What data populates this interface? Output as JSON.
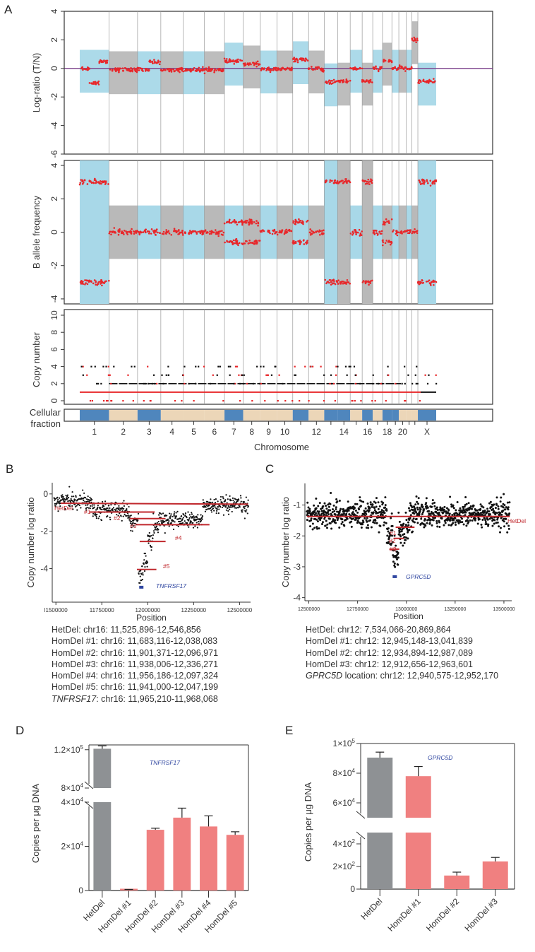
{
  "colors": {
    "cyan": "#a8d8e8",
    "gray": "#b9b9b9",
    "red": "#e8272a",
    "purple": "#7a3e8a",
    "dark_red_line": "#c0282d",
    "gene_blue": "#2f46a0",
    "bar_gray": "#8e9194",
    "bar_pink": "#f08080",
    "tan": "#ecd6b8",
    "steel": "#4f86bd"
  },
  "chart_data": [
    {
      "panel": "A",
      "type": "scatter",
      "title": "",
      "subplots": [
        {
          "name": "log-ratio",
          "ylabel": "Log-ratio (T/N)",
          "ylim": [
            -6,
            4
          ],
          "yticks": [
            "4",
            "2",
            "0",
            "-2",
            "-4",
            "-6"
          ],
          "reference_line": 0,
          "segment_means": [
            {
              "chrom": "1",
              "value": 0.0
            },
            {
              "chrom": "1",
              "value": -1.0
            },
            {
              "chrom": "1",
              "value": 0.5
            },
            {
              "chrom": "2",
              "value": -0.1
            },
            {
              "chrom": "3",
              "value": -0.1
            },
            {
              "chrom": "3",
              "value": 0.45
            },
            {
              "chrom": "4",
              "value": -0.1
            },
            {
              "chrom": "5",
              "value": -0.1
            },
            {
              "chrom": "6",
              "value": -0.1
            },
            {
              "chrom": "7",
              "value": 0.5
            },
            {
              "chrom": "8",
              "value": 0.3
            },
            {
              "chrom": "9",
              "value": -0.05
            },
            {
              "chrom": "10",
              "value": -0.05
            },
            {
              "chrom": "11",
              "value": 0.6
            },
            {
              "chrom": "12",
              "value": -0.05
            },
            {
              "chrom": "13",
              "value": -0.95
            },
            {
              "chrom": "14",
              "value": -0.9
            },
            {
              "chrom": "15",
              "value": 0.0
            },
            {
              "chrom": "16",
              "value": -0.9
            },
            {
              "chrom": "17",
              "value": 0.0
            },
            {
              "chrom": "18",
              "value": 0.5
            },
            {
              "chrom": "19",
              "value": 0.0
            },
            {
              "chrom": "20",
              "value": 0.0
            },
            {
              "chrom": "21",
              "value": 0.0
            },
            {
              "chrom": "22",
              "value": 2.0
            },
            {
              "chrom": "X",
              "value": -0.9
            }
          ]
        },
        {
          "name": "baf",
          "ylabel": "B allele frequency",
          "ylim": [
            -4.3,
            4.3
          ],
          "yticks": [
            "4",
            "2",
            "0",
            "-2",
            "-4"
          ]
        },
        {
          "name": "copy-number",
          "ylabel": "Copy number",
          "ylim": [
            0,
            10
          ],
          "yticks": [
            "10",
            "8",
            "6",
            "4",
            "2",
            "0"
          ]
        },
        {
          "name": "cellular-fraction",
          "ylabel_lines": [
            "Cellular",
            "fraction"
          ]
        }
      ],
      "xlabel": "Chromosome",
      "xtick_labels": [
        "1",
        "2",
        "3",
        "4",
        "5",
        "6",
        "7",
        "8",
        "9",
        "10",
        "",
        "12",
        "",
        "14",
        "",
        "16",
        "",
        "18",
        "",
        "20",
        "",
        "",
        "X"
      ],
      "chromosomes": [
        "1",
        "2",
        "3",
        "4",
        "5",
        "6",
        "7",
        "8",
        "9",
        "10",
        "11",
        "12",
        "13",
        "14",
        "15",
        "16",
        "17",
        "18",
        "19",
        "20",
        "21",
        "22",
        "X"
      ],
      "chrom_sizes": [
        249,
        243,
        198,
        190,
        181,
        171,
        159,
        146,
        141,
        135,
        135,
        133,
        114,
        107,
        102,
        90,
        83,
        80,
        59,
        64,
        47,
        51,
        156
      ]
    },
    {
      "panel": "B",
      "type": "scatter",
      "xlabel": "Position",
      "ylabel": "Copy number log ratio",
      "xlim": [
        11480000,
        12560000
      ],
      "ylim": [
        -5.8,
        0.6
      ],
      "xticks": [
        11500000,
        11750000,
        12000000,
        12250000,
        12500000
      ],
      "xtick_labels": [
        "l1500000",
        "11750000",
        "12000000",
        "12250000",
        "12500000"
      ],
      "yticks": [
        0,
        -2,
        -4
      ],
      "ytick_labels": [
        "0",
        "-2",
        "-4"
      ],
      "segments": [
        {
          "label": "HetDel",
          "start": 11525896,
          "end": 12546856,
          "value": -0.5,
          "start_val": -0.5,
          "end_val": -0.55
        },
        {
          "label": "#1",
          "start": 11683116,
          "end": 12038083,
          "value": -0.97
        },
        {
          "label": "#2",
          "start": 11901371,
          "end": 12096971,
          "value": -1.32
        },
        {
          "label": "#3",
          "start": 11938006,
          "end": 12336271,
          "value": -1.65
        },
        {
          "label": "#4",
          "start": 11956186,
          "end": 12097324,
          "value": -2.55
        },
        {
          "label": "#5",
          "start": 11941000,
          "end": 12047199,
          "value": -4.05
        }
      ],
      "gene": {
        "label": "TNFRSF17",
        "start": 11965210,
        "end": 11968068,
        "value": -5.0
      }
    },
    {
      "panel": "C",
      "type": "scatter",
      "xlabel": "Position",
      "ylabel": "Copy number log ratio",
      "xlim": [
        12480000,
        13540000
      ],
      "ylim": [
        -4.1,
        -0.3
      ],
      "xticks": [
        12500000,
        12750000,
        13000000,
        13250000,
        13500000
      ],
      "xtick_labels": [
        "12500000",
        "12750000",
        "13000000",
        "13250000",
        "13500000"
      ],
      "yticks": [
        -1,
        -2,
        -3,
        -4
      ],
      "ytick_labels": [
        "-1",
        "-2",
        "-3",
        "-4"
      ],
      "segments": [
        {
          "label": "HetDel",
          "start": 12490000,
          "end": 13530000,
          "value": -1.37
        },
        {
          "label": "#1",
          "start": 12945148,
          "end": 13041839,
          "value": -1.72
        },
        {
          "label": "#2",
          "start": 12934894,
          "end": 12987089,
          "value": -2.08
        },
        {
          "label": "#3",
          "start": 12912656,
          "end": 12963601,
          "value": -2.43
        }
      ],
      "gene": {
        "label": "GPRC5D",
        "start": 12940575,
        "end": 12952170,
        "value": -3.32
      }
    },
    {
      "panel": "D",
      "type": "bar",
      "title": "TNFRSF17",
      "ylabel": "Copies per μg DNA",
      "categories": [
        "HetDel",
        "HomDel #1",
        "HomDel #2",
        "HomDel #3",
        "HomDel #4",
        "HomDel #5"
      ],
      "values": [
        121000,
        300,
        27500,
        33000,
        29000,
        25200
      ],
      "errors": [
        3000,
        200,
        700,
        4300,
        4800,
        1400
      ],
      "bar_colors": [
        "gray",
        "pink",
        "pink",
        "pink",
        "pink",
        "pink"
      ],
      "broken_axis": {
        "lower": [
          0,
          40000
        ],
        "upper": [
          80000,
          125000
        ]
      },
      "ytick_values": [
        0,
        20000,
        40000,
        80000,
        120000
      ],
      "ytick_labels": [
        {
          "m": "0",
          "e": ""
        },
        {
          "m": "2×10",
          "e": "4"
        },
        {
          "m": "4×10",
          "e": "4"
        },
        {
          "m": "8×10",
          "e": "4"
        },
        {
          "m": "1.2×10",
          "e": "5"
        }
      ]
    },
    {
      "panel": "E",
      "type": "bar",
      "title": "GPRC5D",
      "ylabel": "Copies per μg DNA",
      "categories": [
        "HetDel",
        "HomDel #1",
        "HomDel #2",
        "HomDel #3"
      ],
      "values": [
        90500,
        78000,
        120,
        245
      ],
      "errors": [
        3700,
        6500,
        30,
        35
      ],
      "bar_colors": [
        "gray",
        "pink",
        "pink",
        "pink"
      ],
      "broken_axis": {
        "lower": [
          0,
          500
        ],
        "upper": [
          50000,
          100000
        ]
      },
      "ytick_values": [
        0,
        200,
        400,
        60000,
        80000,
        100000
      ],
      "ytick_labels": [
        {
          "m": "0",
          "e": ""
        },
        {
          "m": "2×10",
          "e": "2"
        },
        {
          "m": "4×10",
          "e": "2"
        },
        {
          "m": "6×10",
          "e": "4"
        },
        {
          "m": "8×10",
          "e": "4"
        },
        {
          "m": "1×10",
          "e": "5"
        }
      ]
    }
  ],
  "panel_letters": {
    "A": "A",
    "B": "B",
    "C": "C",
    "D": "D",
    "E": "E"
  },
  "info_b": [
    {
      "italic": "",
      "text": "HetDel: chr16: 11,525,896-12,546,856"
    },
    {
      "italic": "",
      "text": "HomDel #1: chr16: 11,683,116-12,038,083"
    },
    {
      "italic": "",
      "text": "HomDel #2: chr16: 11,901,371-12,096,971"
    },
    {
      "italic": "",
      "text": "HomDel #3: chr16: 11,938,006-12,336,271"
    },
    {
      "italic": "",
      "text": "HomDel #4: chr16: 11,956,186-12,097,324"
    },
    {
      "italic": "",
      "text": "HomDel #5: chr16: 11,941,000-12,047,199"
    },
    {
      "italic": "TNFRSF17",
      "text": ": chr16: 11,965,210-11,968,068"
    }
  ],
  "info_c": [
    {
      "italic": "",
      "text": "HetDel: chr12: 7,534,066-20,869,864"
    },
    {
      "italic": "",
      "text": "HomDel #1: chr12: 12,945,148-13,041,839"
    },
    {
      "italic": "",
      "text": "HomDel #2: chr12: 12,934,894-12,987,089"
    },
    {
      "italic": "",
      "text": "HomDel #3: chr12: 12,912,656-12,963,601"
    },
    {
      "italic": "GPRC5D",
      "text": " location: chr12: 12,940,575-12,952,170"
    }
  ]
}
